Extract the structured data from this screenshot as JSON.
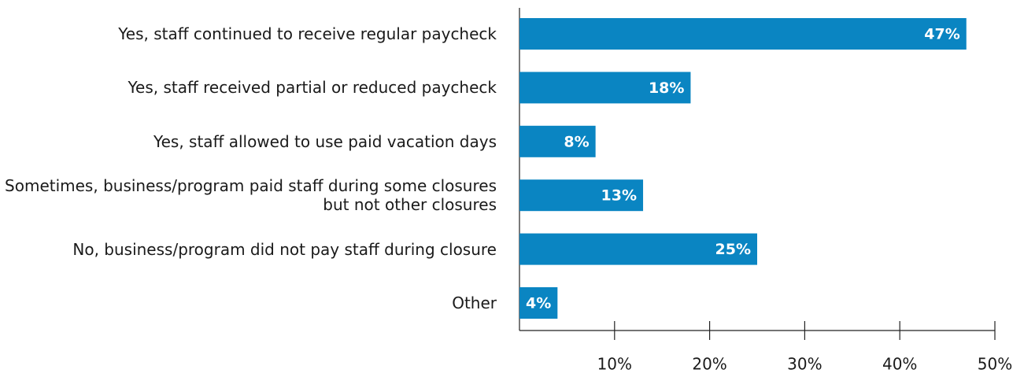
{
  "chart_data": {
    "type": "bar",
    "orientation": "horizontal",
    "categories": [
      "Yes, staff continued to receive regular paycheck",
      "Yes, staff received partial or reduced paycheck",
      "Yes, staff allowed to use paid vacation days",
      "Sometimes, business/program paid staff during some closures but not other closures",
      "No, business/program did not pay staff during closure",
      "Other"
    ],
    "values": [
      47,
      18,
      8,
      13,
      25,
      4
    ],
    "value_labels": [
      "47%",
      "18%",
      "8%",
      "13%",
      "25%",
      "4%"
    ],
    "color": "#0a85c2",
    "xlim": [
      0,
      50
    ],
    "xticks": [
      {
        "value": 10,
        "label": "10%"
      },
      {
        "value": 20,
        "label": "20%"
      },
      {
        "value": 30,
        "label": "30%"
      },
      {
        "value": 40,
        "label": "40%"
      },
      {
        "value": 50,
        "label": "50%"
      }
    ],
    "grid": false
  }
}
